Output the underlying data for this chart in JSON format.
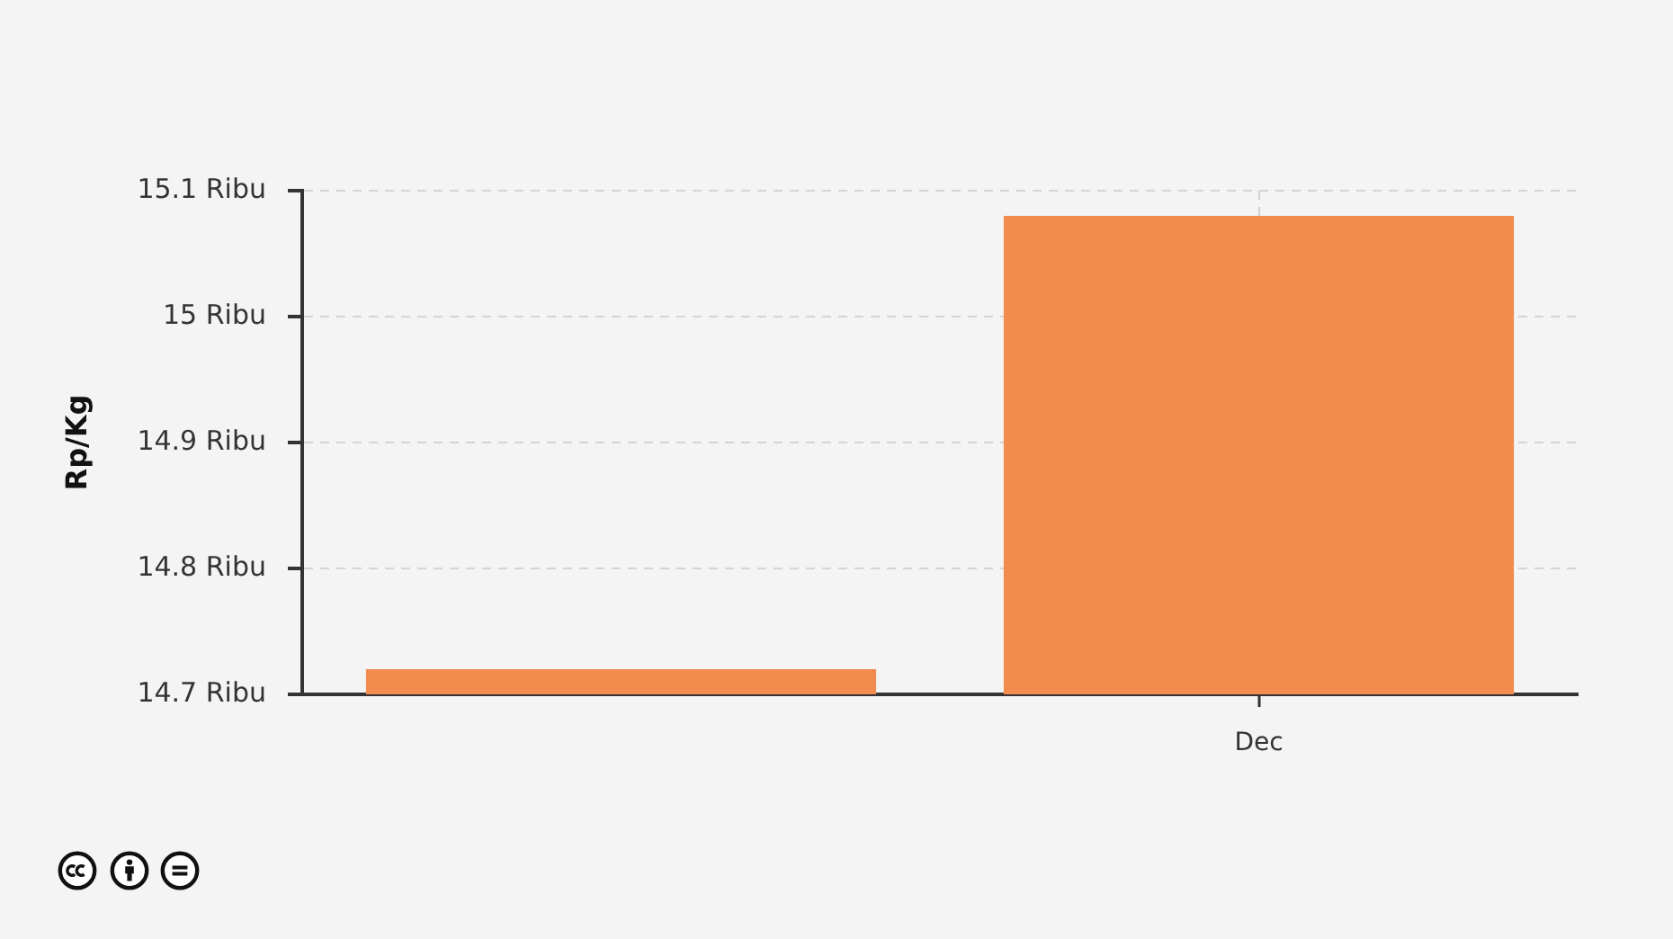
{
  "chart_data": {
    "type": "bar",
    "ylabel": "Rp/Kg",
    "categories": [
      null,
      "Dec"
    ],
    "values": [
      14.72,
      15.08
    ],
    "color": "#f28b4e",
    "ylim": [
      14.7,
      15.1
    ],
    "yticks": [
      {
        "value": 14.7,
        "label": "14.7 Ribu"
      },
      {
        "value": 14.8,
        "label": "14.8 Ribu"
      },
      {
        "value": 14.9,
        "label": "14.9 Ribu"
      },
      {
        "value": 15,
        "label": "15 Ribu"
      },
      {
        "value": 15.1,
        "label": "15.1 Ribu"
      }
    ],
    "grid": true
  }
}
